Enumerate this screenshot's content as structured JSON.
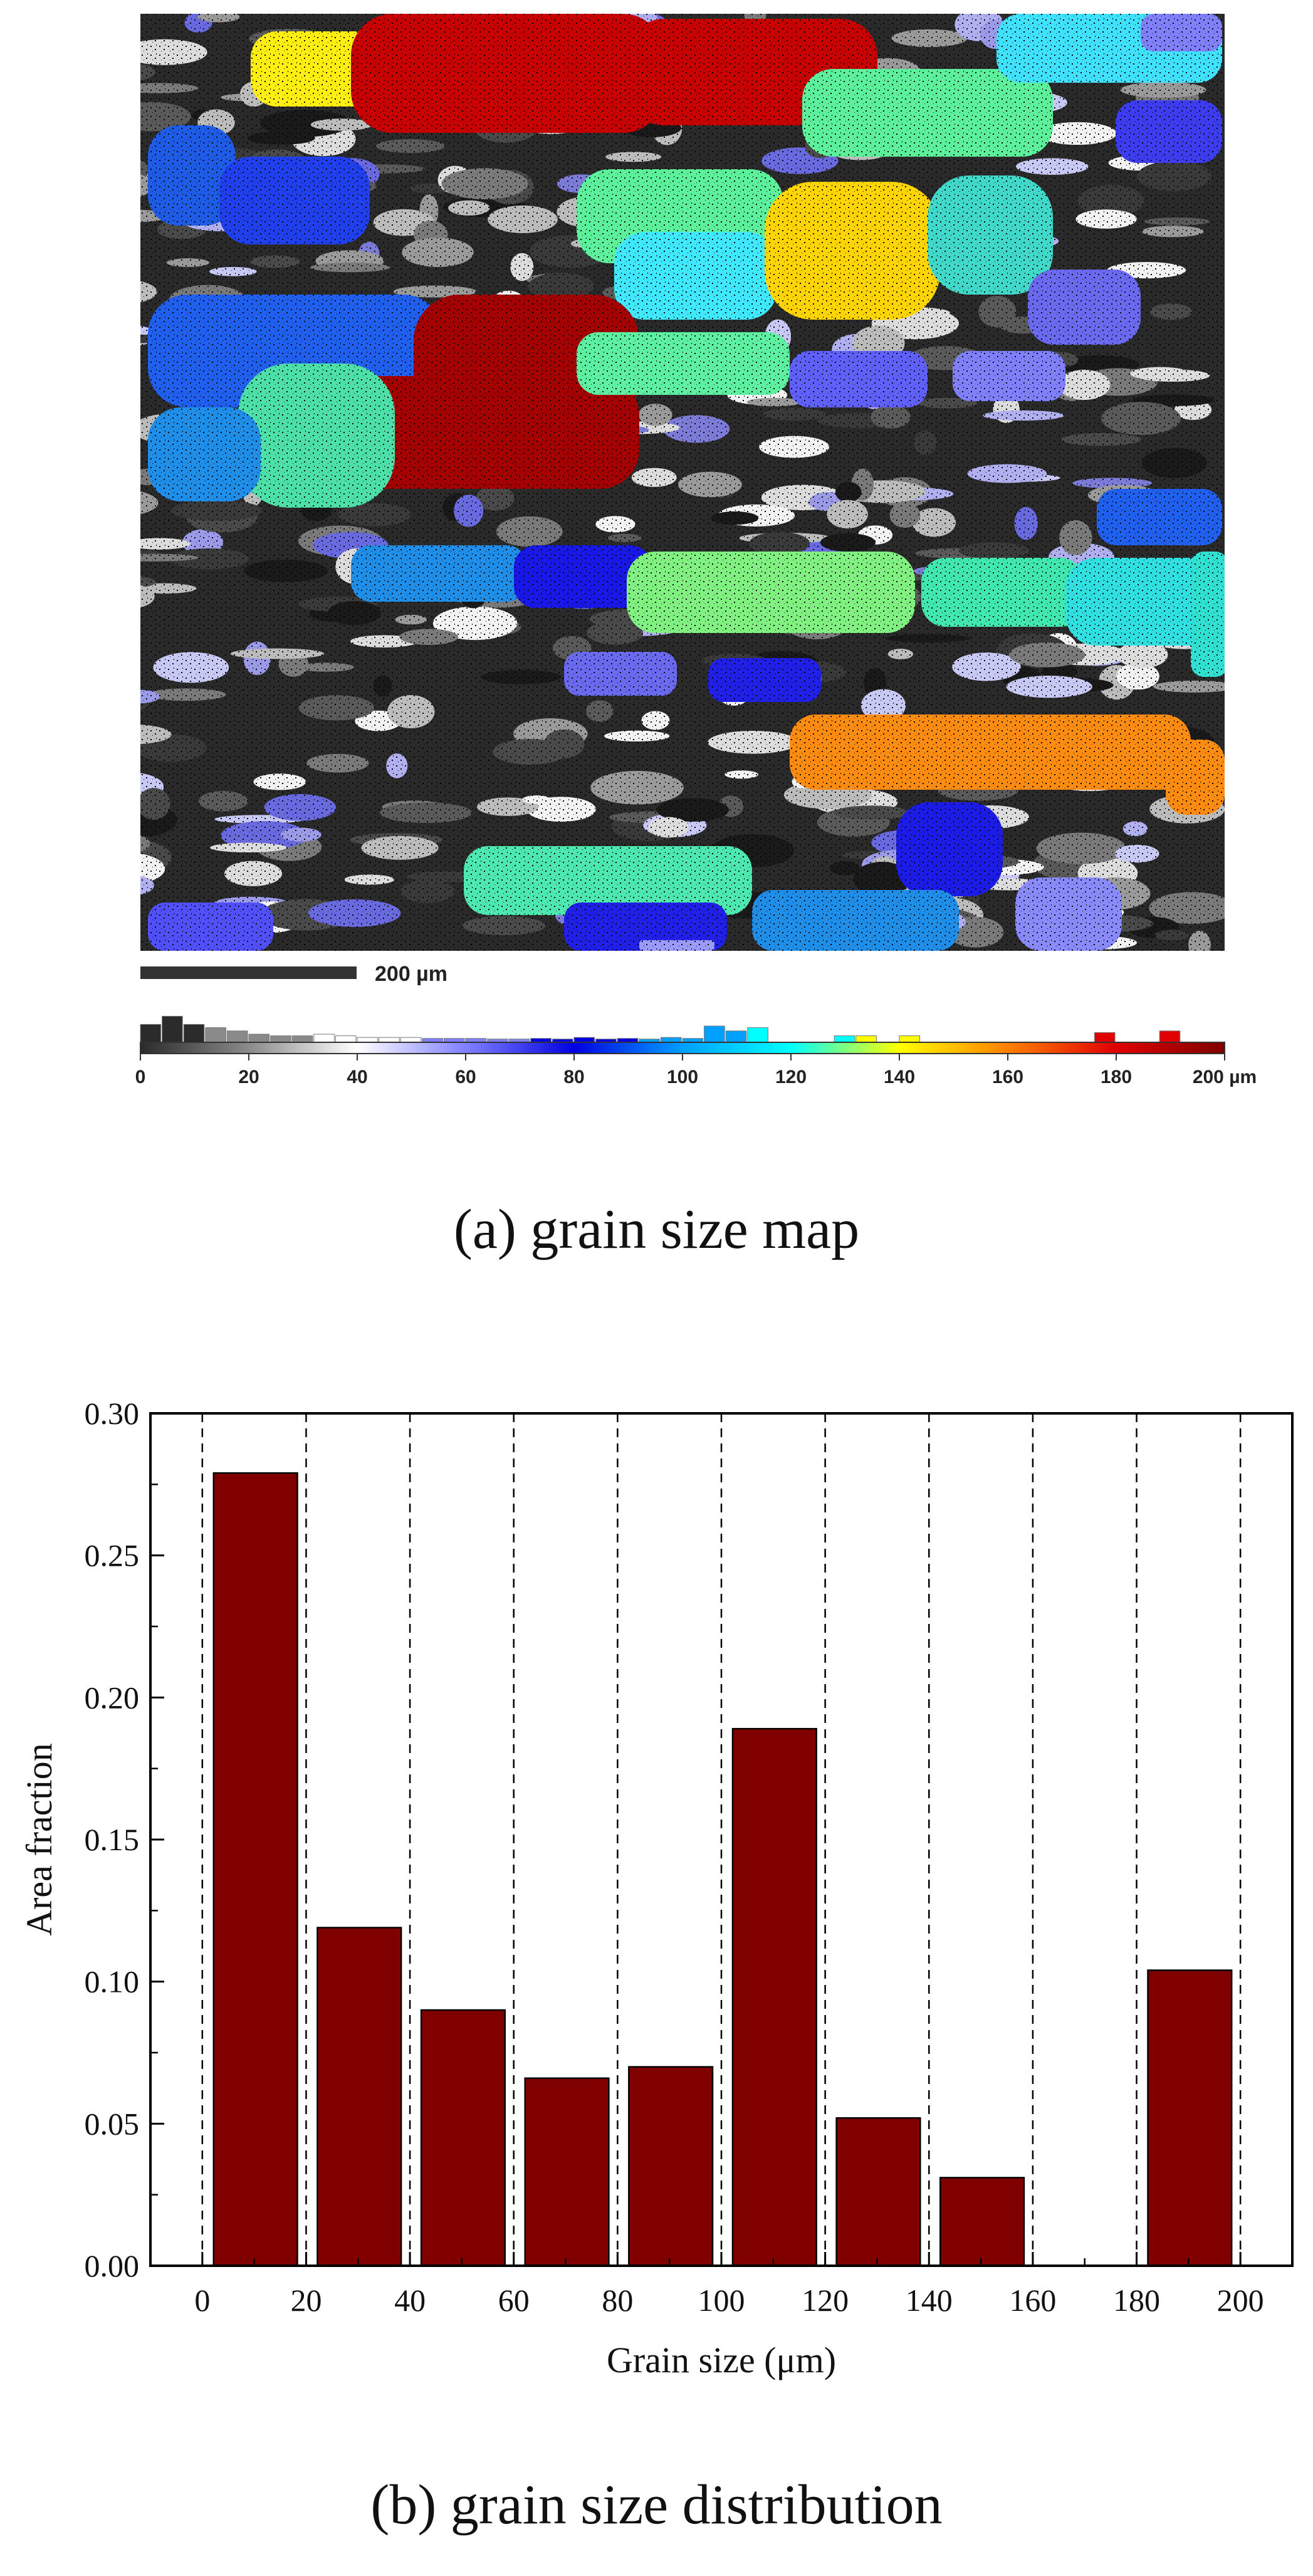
{
  "figure": {
    "caption_a": "(a) grain size map",
    "caption_b": "(b) grain size distribution"
  },
  "map": {
    "scale_bar_label": "200 µm",
    "legend_ticks": [
      "0",
      "20",
      "40",
      "60",
      "80",
      "100",
      "120",
      "140",
      "160",
      "180",
      "200 µm"
    ],
    "legend_histogram": [
      0.055,
      0.08,
      0.055,
      0.045,
      0.035,
      0.025,
      0.02,
      0.02,
      0.025,
      0.02,
      0.015,
      0.015,
      0.015,
      0.012,
      0.012,
      0.012,
      0.01,
      0.01,
      0.012,
      0.01,
      0.015,
      0.01,
      0.012,
      0.01,
      0.015,
      0.012,
      0.05,
      0.035,
      0.045,
      0.0,
      0.0,
      0.0,
      0.02,
      0.02,
      0.0,
      0.02,
      0.0,
      0.0,
      0.0,
      0.0,
      0.0,
      0.0,
      0.0,
      0.0,
      0.03,
      0.0,
      0.0,
      0.035,
      0.0,
      0.0
    ],
    "colormap": [
      "#2b2b2b",
      "#8a8a8a",
      "#ffffff",
      "#8080ff",
      "#0000e0",
      "#00a0ff",
      "#00ffff",
      "#ffff00",
      "#ff8000",
      "#e00000",
      "#800000"
    ]
  },
  "chart_data": {
    "type": "bar",
    "xlabel": "Grain size (μm)",
    "ylabel": "Area fraction",
    "xlim": [
      -10,
      210
    ],
    "ylim": [
      0,
      0.3
    ],
    "x_ticks": [
      0,
      20,
      40,
      60,
      80,
      100,
      120,
      140,
      160,
      180,
      200
    ],
    "x_tick_labels": [
      "0",
      "20",
      "40",
      "60",
      "80",
      "100",
      "120",
      "140",
      "160",
      "180",
      "200"
    ],
    "y_ticks": [
      0,
      0.05,
      0.1,
      0.15,
      0.2,
      0.25,
      0.3
    ],
    "y_tick_labels": [
      "0.00",
      "0.05",
      "0.10",
      "0.15",
      "0.20",
      "0.25",
      "0.30"
    ],
    "bins": [
      [
        0,
        20
      ],
      [
        20,
        40
      ],
      [
        40,
        60
      ],
      [
        60,
        80
      ],
      [
        80,
        100
      ],
      [
        100,
        120
      ],
      [
        120,
        140
      ],
      [
        140,
        160
      ],
      [
        160,
        180
      ],
      [
        180,
        200
      ]
    ],
    "values": [
      0.279,
      0.119,
      0.09,
      0.066,
      0.07,
      0.189,
      0.052,
      0.031,
      0.0,
      0.104
    ],
    "bar_color": "#800000",
    "dashed_lines_x": [
      0,
      20,
      40,
      60,
      80,
      100,
      120,
      140,
      160,
      180,
      200
    ],
    "grid": false
  }
}
